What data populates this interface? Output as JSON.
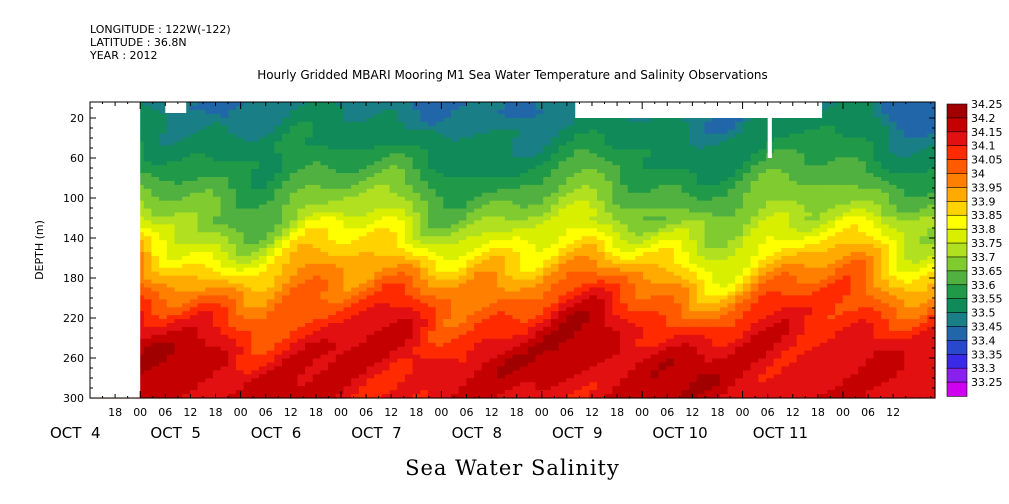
{
  "header": {
    "longitude": "LONGITUDE : 122W(-122)",
    "latitude": "LATITUDE : 36.8N",
    "year": "YEAR : 2012"
  },
  "chart_data": {
    "type": "heatmap",
    "title": "Hourly Gridded MBARI Mooring M1 Sea Water Temperature and Salinity Observations",
    "xlabel": "Sea Water Salinity",
    "ylabel": "DEPTH (m)",
    "ylim": [
      300,
      4
    ],
    "y_ticks": [
      20,
      60,
      100,
      140,
      180,
      220,
      260,
      300
    ],
    "x_range_hours": [
      "2012-10-03 12:00",
      "2012-10-11 22:00"
    ],
    "x_hour_ticks": [
      {
        "label": "18",
        "day": 3,
        "hour": 18
      },
      {
        "label": "00",
        "day": 4,
        "hour": 0
      },
      {
        "label": "06",
        "day": 4,
        "hour": 6
      },
      {
        "label": "12",
        "day": 4,
        "hour": 12
      },
      {
        "label": "18",
        "day": 4,
        "hour": 18
      },
      {
        "label": "00",
        "day": 5,
        "hour": 0
      },
      {
        "label": "06",
        "day": 5,
        "hour": 6
      },
      {
        "label": "12",
        "day": 5,
        "hour": 12
      },
      {
        "label": "18",
        "day": 5,
        "hour": 18
      },
      {
        "label": "00",
        "day": 6,
        "hour": 0
      },
      {
        "label": "06",
        "day": 6,
        "hour": 6
      },
      {
        "label": "12",
        "day": 6,
        "hour": 12
      },
      {
        "label": "18",
        "day": 6,
        "hour": 18
      },
      {
        "label": "00",
        "day": 7,
        "hour": 0
      },
      {
        "label": "06",
        "day": 7,
        "hour": 6
      },
      {
        "label": "12",
        "day": 7,
        "hour": 12
      },
      {
        "label": "18",
        "day": 7,
        "hour": 18
      },
      {
        "label": "00",
        "day": 8,
        "hour": 0
      },
      {
        "label": "06",
        "day": 8,
        "hour": 6
      },
      {
        "label": "12",
        "day": 8,
        "hour": 12
      },
      {
        "label": "18",
        "day": 8,
        "hour": 18
      },
      {
        "label": "00",
        "day": 9,
        "hour": 0
      },
      {
        "label": "06",
        "day": 9,
        "hour": 6
      },
      {
        "label": "12",
        "day": 9,
        "hour": 12
      },
      {
        "label": "18",
        "day": 9,
        "hour": 18
      },
      {
        "label": "00",
        "day": 10,
        "hour": 0
      },
      {
        "label": "06",
        "day": 10,
        "hour": 6
      },
      {
        "label": "12",
        "day": 10,
        "hour": 12
      },
      {
        "label": "18",
        "day": 10,
        "hour": 18
      },
      {
        "label": "00",
        "day": 11,
        "hour": 0
      },
      {
        "label": "06",
        "day": 11,
        "hour": 6
      },
      {
        "label": "12",
        "day": 11,
        "hour": 12
      }
    ],
    "x_day_labels": [
      {
        "label": "OCT  4",
        "day": 3.5
      },
      {
        "label": "OCT  5",
        "day": 4.5
      },
      {
        "label": "OCT  6",
        "day": 5.5
      },
      {
        "label": "OCT  7",
        "day": 6.5
      },
      {
        "label": "OCT  8",
        "day": 7.5
      },
      {
        "label": "OCT  9",
        "day": 8.5
      },
      {
        "label": "OCT 10",
        "day": 9.5
      },
      {
        "label": "OCT 11",
        "day": 10.5
      }
    ],
    "colorbar": {
      "levels": [
        34.25,
        34.2,
        34.15,
        34.1,
        34.05,
        34,
        33.95,
        33.9,
        33.85,
        33.8,
        33.75,
        33.7,
        33.65,
        33.6,
        33.55,
        33.5,
        33.45,
        33.4,
        33.35,
        33.3,
        33.25
      ],
      "labels": [
        "34.25",
        "34.2",
        "34.15",
        "34.1",
        "34.05",
        "34",
        "33.95",
        "33.9",
        "33.85",
        "33.8",
        "33.75",
        "33.7",
        "33.65",
        "33.6",
        "33.55",
        "33.5",
        "33.45",
        "33.4",
        "33.35",
        "33.3",
        "33.25"
      ],
      "colors": [
        "#a00000",
        "#c40000",
        "#e21010",
        "#ff2a00",
        "#ff5a00",
        "#ff8000",
        "#ffaa00",
        "#ffd200",
        "#ffff00",
        "#d8f000",
        "#b0e020",
        "#80cc30",
        "#50b040",
        "#209a48",
        "#108a58",
        "#1a7e86",
        "#2266aa",
        "#2a48cc",
        "#3a2ae8",
        "#8a20ee",
        "#d000f0"
      ]
    },
    "depth_profile": [
      {
        "depth": 10,
        "salinity": 33.45
      },
      {
        "depth": 20,
        "salinity": 33.5
      },
      {
        "depth": 40,
        "salinity": 33.52
      },
      {
        "depth": 60,
        "salinity": 33.55
      },
      {
        "depth": 80,
        "salinity": 33.6
      },
      {
        "depth": 100,
        "salinity": 33.65
      },
      {
        "depth": 120,
        "salinity": 33.7
      },
      {
        "depth": 140,
        "salinity": 33.78
      },
      {
        "depth": 160,
        "salinity": 33.86
      },
      {
        "depth": 180,
        "salinity": 33.95
      },
      {
        "depth": 200,
        "salinity": 34.02
      },
      {
        "depth": 220,
        "salinity": 34.08
      },
      {
        "depth": 240,
        "salinity": 34.13
      },
      {
        "depth": 260,
        "salinity": 34.16
      },
      {
        "depth": 280,
        "salinity": 34.15
      },
      {
        "depth": 300,
        "salinity": 34.14
      }
    ],
    "missing_data": [
      {
        "from": "2012-10-03 12:00",
        "to": "2012-10-04 00:00",
        "depth_from": 4,
        "depth_to": 300
      },
      {
        "from": "2012-10-04 06:00",
        "to": "2012-10-04 11:00",
        "depth_from": 4,
        "depth_to": 15
      },
      {
        "from": "2012-10-08 08:00",
        "to": "2012-10-10 19:00",
        "depth_from": 4,
        "depth_to": 20
      },
      {
        "from": "2012-10-10 06:00",
        "to": "2012-10-10 07:00",
        "depth_from": 20,
        "depth_to": 60
      }
    ]
  }
}
